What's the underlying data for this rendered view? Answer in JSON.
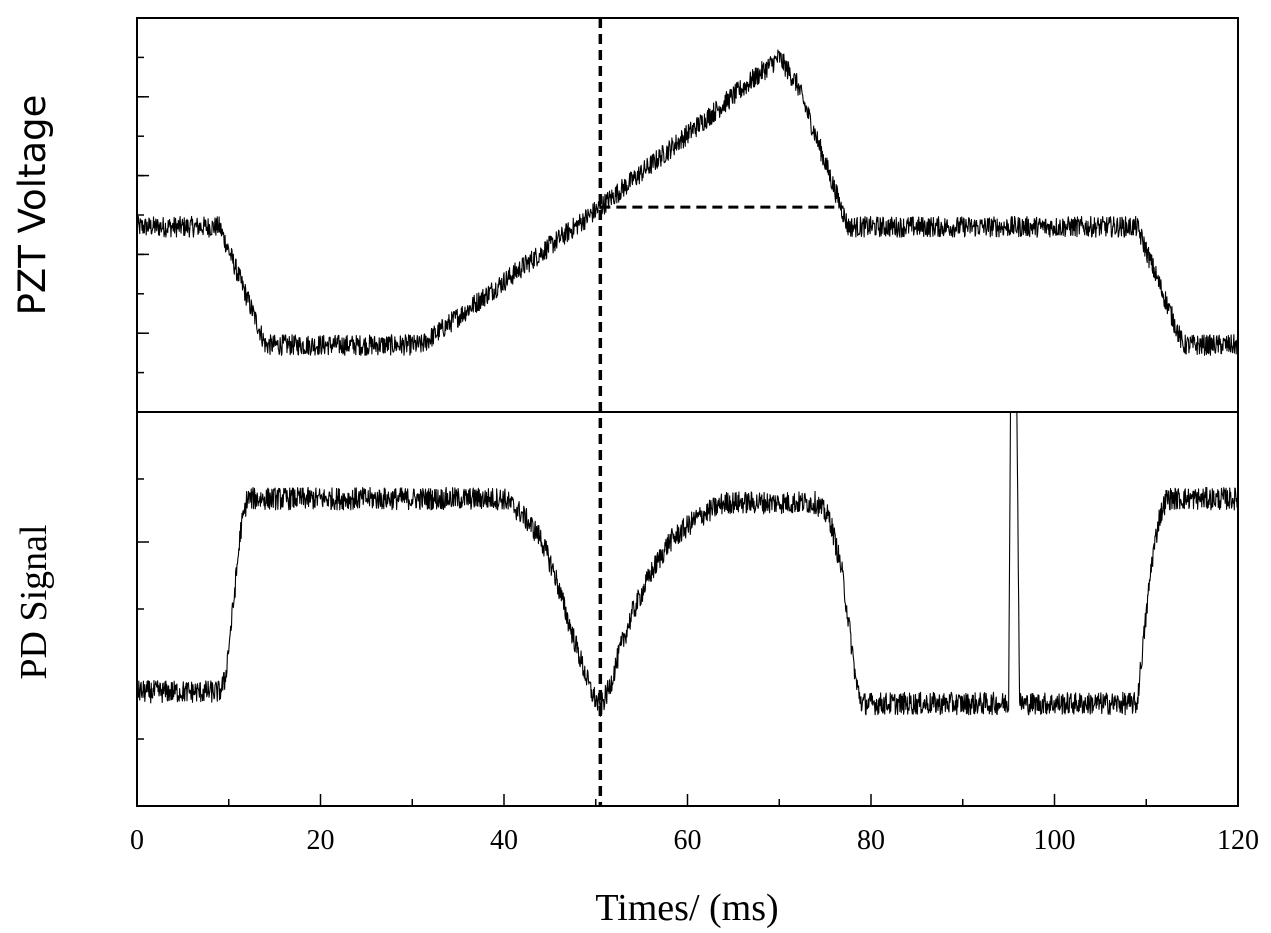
{
  "chart_data": {
    "type": "line",
    "xlabel": "Times/ (ms)",
    "xlim": [
      0,
      120
    ],
    "x_tick_labels": [
      "0",
      "20",
      "40",
      "60",
      "80",
      "100",
      "120"
    ],
    "x_ticks": [
      0,
      20,
      40,
      60,
      80,
      100,
      120
    ],
    "x_minor_ticks": [
      10,
      30,
      50,
      70,
      90,
      110
    ],
    "marker_x": 50.5,
    "grid": false,
    "panels": [
      {
        "ylabel": "PZT Voltage",
        "ylim": [
          0,
          10
        ],
        "y_ticks": [
          1,
          2,
          3,
          4,
          5,
          6,
          7,
          8,
          9
        ],
        "y_major_ticks": [
          2,
          4,
          6,
          8
        ],
        "noise": 0.12,
        "series": [
          {
            "x": [
              0,
              9,
              14,
              31,
              50.5,
              70,
              72,
              77.5,
              109,
              114,
              120
            ],
            "values": [
              4.7,
              4.7,
              1.7,
              1.7,
              5.2,
              9.0,
              8.3,
              4.7,
              4.7,
              1.7,
              1.7
            ]
          }
        ],
        "reference_line": {
          "x": [
            50.5,
            77
          ],
          "y": 5.2
        }
      },
      {
        "ylabel": "PD Signal",
        "ylim": [
          0,
          10
        ],
        "y_ticks": [
          1.7,
          5,
          8.3
        ],
        "y_major_ticks": [
          6.7
        ],
        "noise": 0.13,
        "series": [
          {
            "x": [
              0,
              9,
              9.6,
              10.5,
              11.3,
              12,
              40,
              42,
              44,
              45.5,
              47,
              48.5,
              49.5,
              50.5,
              51.5,
              52.7,
              54,
              56,
              58,
              61,
              64,
              74,
              75.5,
              76.8,
              77.6,
              78.4,
              79,
              95,
              95.2,
              95.9,
              96.2,
              109,
              109.7,
              110.6,
              111.4,
              112.2,
              120
            ],
            "values": [
              2.9,
              2.9,
              3.2,
              5.1,
              7.0,
              7.8,
              7.8,
              7.4,
              6.8,
              5.9,
              4.7,
              3.6,
              2.9,
              2.5,
              3.0,
              4.0,
              4.9,
              5.9,
              6.7,
              7.3,
              7.7,
              7.7,
              7.3,
              6.0,
              4.6,
              3.1,
              2.6,
              2.6,
              10.0,
              10.0,
              2.6,
              2.6,
              4.2,
              6.2,
              7.3,
              7.8,
              7.8
            ]
          }
        ]
      }
    ]
  }
}
